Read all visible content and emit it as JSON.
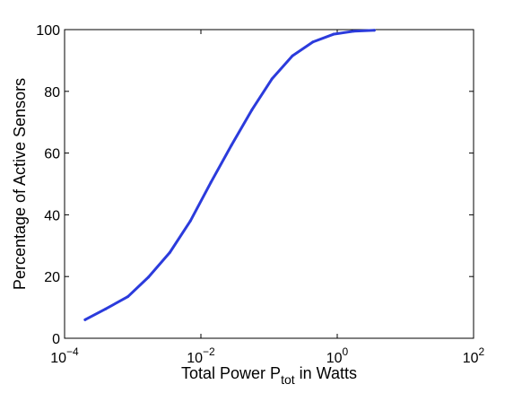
{
  "chart_data": {
    "type": "line",
    "title": "",
    "xlabel": {
      "prefix": "Total Power P",
      "subscript": "tot",
      "suffix": " in Watts"
    },
    "ylabel": "Percentage of Active Sensors",
    "x_scale": "log",
    "xlim": [
      0.0001,
      100
    ],
    "ylim": [
      0,
      100
    ],
    "x_ticks": [
      {
        "value": 0.0001,
        "base": "10",
        "exp": "−4"
      },
      {
        "value": 0.01,
        "base": "10",
        "exp": "−2"
      },
      {
        "value": 1,
        "base": "10",
        "exp": "0"
      },
      {
        "value": 100,
        "base": "10",
        "exp": "2"
      }
    ],
    "y_ticks": [
      0,
      20,
      40,
      60,
      80,
      100
    ],
    "grid": false,
    "legend": "none",
    "series": [
      {
        "color": "#2b3bdc",
        "x": [
          0.0002,
          0.0004,
          0.00085,
          0.0017,
          0.0035,
          0.007,
          0.014,
          0.028,
          0.056,
          0.11,
          0.22,
          0.44,
          0.88,
          1.75,
          3.5
        ],
        "y": [
          6,
          9.5,
          13.5,
          19.8,
          27.8,
          38,
          50.5,
          62.5,
          74,
          84,
          91.5,
          96,
          98.5,
          99.5,
          99.8
        ]
      }
    ]
  }
}
